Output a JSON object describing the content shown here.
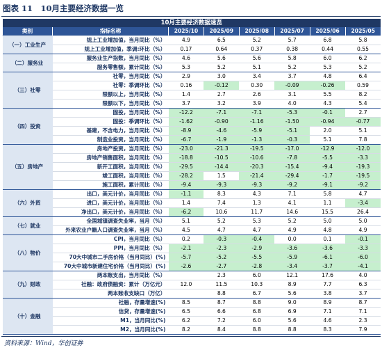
{
  "header": {
    "title": "图表 11　10月主要经济数据一览",
    "banner": "10月主要经济数据速览",
    "columns": [
      "类别",
      "指标名称",
      "2025/10",
      "2025/09",
      "2025/08",
      "2025/07",
      "2025/06",
      "2025/05"
    ]
  },
  "groups": [
    {
      "name": "（一）工业生产",
      "rows": [
        {
          "label": "规上工业增加值，当月同比（%）",
          "values": [
            "4.9",
            "6.5",
            "5.2",
            "5.7",
            "6.8",
            "5.8"
          ]
        },
        {
          "label": "规上工业增加值，季调:环比（%）",
          "values": [
            "0.17",
            "0.64",
            "0.37",
            "0.38",
            "0.44",
            "0.55"
          ]
        }
      ]
    },
    {
      "name": "（二）服务业",
      "rows": [
        {
          "label": "服务业生产指数，当月同比（%）",
          "values": [
            "4.6",
            "5.6",
            "5.6",
            "5.8",
            "6.0",
            "6.2"
          ]
        },
        {
          "label": "服务零售额，累计同比（%）",
          "values": [
            "5.3",
            "5.2",
            "5.1",
            "5.2",
            "5.3",
            "5.2"
          ]
        }
      ]
    },
    {
      "name": "（三）社零",
      "rows": [
        {
          "label": "社零，当月同比（%）",
          "values": [
            "2.9",
            "3.0",
            "3.4",
            "3.7",
            "4.8",
            "6.4"
          ]
        },
        {
          "label": "社零：季调环比（%）",
          "values": [
            "0.16",
            "-0.12",
            "0.30",
            "-0.09",
            "-0.26",
            "0.59"
          ]
        },
        {
          "label": "限额以上，当月同比（%）",
          "values": [
            "1.4",
            "2.7",
            "2.6",
            "3.1",
            "5.5",
            "8.2"
          ]
        },
        {
          "label": "限额以下，当月同比（%）",
          "values": [
            "3.7",
            "3.2",
            "3.9",
            "4.0",
            "4.3",
            "5.4"
          ]
        }
      ]
    },
    {
      "name": "（四）投资",
      "rows": [
        {
          "label": "固投，当月同比（%）",
          "values": [
            "-12.2",
            "-7.1",
            "-7.1",
            "-5.3",
            "-0.1",
            "2.7"
          ]
        },
        {
          "label": "固投：季调环比（%）",
          "values": [
            "-1.62",
            "-0.90",
            "-1.16",
            "-1.50",
            "-0.94",
            "-0.77"
          ]
        },
        {
          "label": "基建，不含电力，当月同比（%）",
          "values": [
            "-8.9",
            "-4.6",
            "-5.9",
            "-5.1",
            "2.0",
            "5.1"
          ]
        },
        {
          "label": "制造业投资，当月同比（%）",
          "values": [
            "-6.7",
            "-1.9",
            "-1.3",
            "-0.3",
            "5.1",
            "7.8"
          ]
        }
      ]
    },
    {
      "name": "（五）房地产",
      "rows": [
        {
          "label": "房地产投资，当月同比（%）",
          "values": [
            "-23.0",
            "-21.3",
            "-19.5",
            "-17.0",
            "-12.9",
            "-12.0"
          ]
        },
        {
          "label": "房地产销售面积，当月同比（%）",
          "values": [
            "-18.8",
            "-10.5",
            "-10.6",
            "-7.8",
            "-5.5",
            "-3.3"
          ]
        },
        {
          "label": "新开工面积，当月同比（%）",
          "values": [
            "-29.5",
            "-14.4",
            "-20.3",
            "-15.4",
            "-9.4",
            "-19.3"
          ]
        },
        {
          "label": "竣工面积，当月同比（%）",
          "values": [
            "-28.2",
            "1.5",
            "-21.4",
            "-29.4",
            "-1.7",
            "-19.5"
          ]
        },
        {
          "label": "施工面积，累计同比（%）",
          "values": [
            "-9.4",
            "-9.3",
            "-9.3",
            "-9.2",
            "-9.1",
            "-9.2"
          ]
        }
      ]
    },
    {
      "name": "（六）外贸",
      "rows": [
        {
          "label": "出口，美元计价，当月同比（%）",
          "values": [
            "-1.1",
            "8.3",
            "4.3",
            "7.1",
            "5.8",
            "4.7"
          ]
        },
        {
          "label": "进口，美元计价，当月同比（%）",
          "values": [
            "1.4",
            "7.4",
            "1.3",
            "4.1",
            "1.1",
            "-3.4"
          ]
        },
        {
          "label": "净出口，美元计价，当月同比（%）",
          "values": [
            "-6.2",
            "10.6",
            "11.7",
            "14.6",
            "15.5",
            "26.4"
          ]
        }
      ]
    },
    {
      "name": "（七）就业",
      "rows": [
        {
          "label": "全国城镇调查失业率，当月（%）",
          "values": [
            "5.1",
            "5.2",
            "5.3",
            "5.2",
            "5.0",
            "5.0"
          ]
        },
        {
          "label": "外来农业户籍人口调查失业率，当月（%）",
          "values": [
            "4.5",
            "4.7",
            "4.7",
            "4.9",
            "4.8",
            "4.9"
          ]
        }
      ]
    },
    {
      "name": "（八）物价",
      "rows": [
        {
          "label": "CPI，当月同比（%）",
          "values": [
            "0.2",
            "-0.3",
            "-0.4",
            "0.0",
            "0.1",
            "-0.1"
          ]
        },
        {
          "label": "PPI，当月同比（%）",
          "values": [
            "-2.1",
            "-2.3",
            "-2.9",
            "-3.6",
            "-3.6",
            "-3.3"
          ]
        },
        {
          "label": "70大中城市二手房价格（当月同比）(%)",
          "values": [
            "-5.7",
            "-5.2",
            "-5.5",
            "-5.9",
            "-6.1",
            "-6.0"
          ]
        },
        {
          "label": "70大中城市新建住宅价格（当月同比）(%)",
          "values": [
            "-2.6",
            "-2.7",
            "-2.8",
            "-3.4",
            "-3.7",
            "-4.1"
          ]
        }
      ]
    },
    {
      "name": "（九）财政",
      "rows": [
        {
          "label": "两本账支出，当月同比（%）",
          "values": [
            null,
            "2.3",
            "6.0",
            "12.1",
            "17.6",
            "4.0"
          ]
        },
        {
          "label": "社融：政府债融资：累计（万亿元）",
          "values": [
            "12.0",
            "11.5",
            "10.3",
            "8.9",
            "7.7",
            "6.3"
          ]
        },
        {
          "label": "两本账收支缺口（万亿）",
          "values": [
            null,
            "8.8",
            "6.7",
            "5.6",
            "3.8",
            "3.7"
          ]
        }
      ]
    },
    {
      "name": "（十）金融",
      "rows": [
        {
          "label": "社融，存量增速(%)",
          "values": [
            "8.5",
            "8.7",
            "8.8",
            "9.0",
            "8.9",
            "8.7"
          ]
        },
        {
          "label": "信贷，存量增速(%)",
          "values": [
            "6.5",
            "6.6",
            "6.8",
            "6.9",
            "7.1",
            "7.1"
          ]
        },
        {
          "label": "M1，当月同比(%)",
          "values": [
            "6.2",
            "7.2",
            "6.0",
            "5.6",
            "4.6",
            "2.3"
          ]
        },
        {
          "label": "M2，当月同比(%)",
          "values": [
            "8.2",
            "8.4",
            "8.8",
            "8.8",
            "8.3",
            "7.9"
          ]
        }
      ]
    }
  ],
  "source": "资料来源：Wind，华创证券"
}
